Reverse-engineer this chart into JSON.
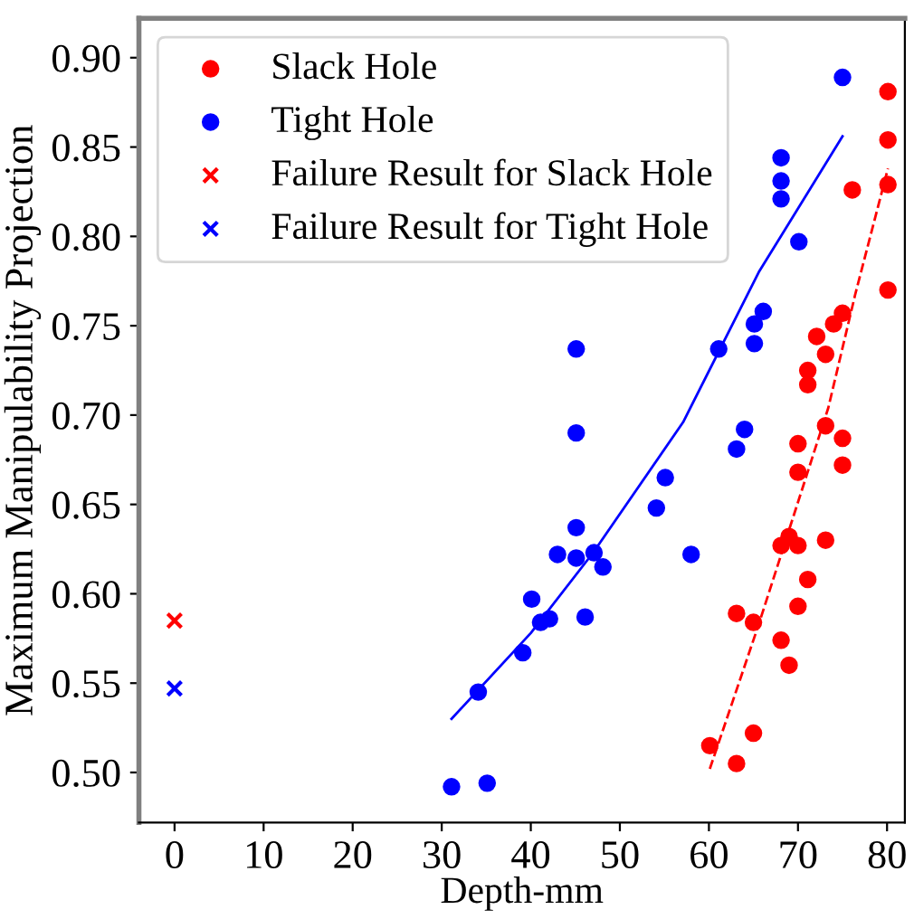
{
  "chart_data": {
    "type": "scatter",
    "xlabel": "Depth-mm",
    "ylabel": "Maximum Manipulability Projection",
    "xlim": [
      -4,
      82
    ],
    "ylim": [
      0.472,
      0.922
    ],
    "xticks": [
      0,
      10,
      20,
      30,
      40,
      50,
      60,
      70,
      80
    ],
    "yticks": [
      {
        "value": 0.5,
        "label": "0.50"
      },
      {
        "value": 0.55,
        "label": "0.55"
      },
      {
        "value": 0.6,
        "label": "0.60"
      },
      {
        "value": 0.65,
        "label": "0.65"
      },
      {
        "value": 0.7,
        "label": "0.70"
      },
      {
        "value": 0.75,
        "label": "0.75"
      },
      {
        "value": 0.8,
        "label": "0.80"
      },
      {
        "value": 0.85,
        "label": "0.85"
      },
      {
        "value": 0.9,
        "label": "0.90"
      }
    ],
    "grid": false,
    "legend": "top left",
    "series": [
      {
        "name": "Slack Hole",
        "marker": "circle",
        "color": "#ff0000",
        "x": [
          60.1,
          63.1,
          65.0,
          63.1,
          65.0,
          68.1,
          69.0,
          71.1,
          70.0,
          68.1,
          69.0,
          70.0,
          73.1,
          70.0,
          70.0,
          73.1,
          75.0,
          75.0,
          80.1,
          80.1,
          76.1,
          80.1,
          80.1,
          75.0,
          74.0,
          72.1,
          73.1,
          71.1,
          71.1
        ],
        "values": [
          0.515,
          0.505,
          0.522,
          0.589,
          0.584,
          0.574,
          0.56,
          0.608,
          0.593,
          0.627,
          0.632,
          0.627,
          0.63,
          0.668,
          0.684,
          0.694,
          0.687,
          0.672,
          0.881,
          0.854,
          0.826,
          0.829,
          0.77,
          0.757,
          0.751,
          0.744,
          0.734,
          0.725,
          0.717
        ]
      },
      {
        "name": "Tight Hole",
        "marker": "circle",
        "color": "#0000ff",
        "x": [
          75.0,
          68.1,
          68.1,
          68.1,
          70.1,
          66.1,
          65.1,
          65.1,
          61.1,
          45.1,
          64.0,
          63.1,
          55.1,
          54.1,
          45.1,
          58.0,
          43.0,
          45.1,
          47.1,
          48.1,
          40.1,
          41.1,
          42.1,
          46.1,
          39.1,
          34.1,
          31.1,
          35.1,
          45.1
        ],
        "values": [
          0.889,
          0.844,
          0.831,
          0.821,
          0.797,
          0.758,
          0.751,
          0.74,
          0.737,
          0.737,
          0.692,
          0.681,
          0.665,
          0.648,
          0.637,
          0.622,
          0.622,
          0.62,
          0.623,
          0.615,
          0.597,
          0.584,
          0.586,
          0.587,
          0.567,
          0.545,
          0.492,
          0.494,
          0.69
        ]
      },
      {
        "name": "Failure Result for Slack Hole",
        "marker": "cross",
        "color": "#ff0000",
        "x": [
          0
        ],
        "values": [
          0.585
        ]
      },
      {
        "name": "Failure Result for Tight Hole",
        "marker": "cross",
        "color": "#0000ff",
        "x": [
          0
        ],
        "values": [
          0.547
        ]
      },
      {
        "type": "line",
        "line_style": "solid",
        "color": "#0000ff",
        "x": [
          31.1,
          40,
          47,
          57.1,
          65.6,
          75.0
        ],
        "values": [
          0.53,
          0.578,
          0.623,
          0.696,
          0.78,
          0.856
        ]
      },
      {
        "type": "line",
        "line_style": "dashed",
        "color": "#ff0000",
        "x": [
          60.1,
          65.6,
          73.4,
          76.4,
          80.1
        ],
        "values": [
          0.502,
          0.583,
          0.704,
          0.767,
          0.838
        ]
      }
    ]
  }
}
